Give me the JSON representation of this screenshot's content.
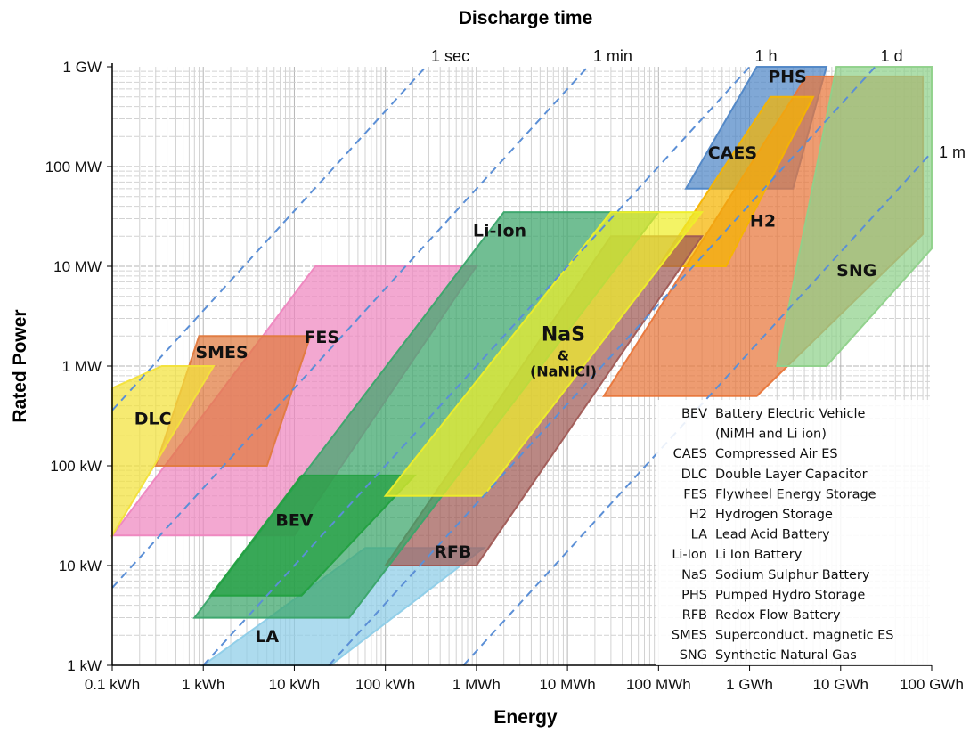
{
  "chart_data": {
    "type": "area",
    "xlabel": "Energy",
    "ylabel": "Rated Power",
    "top_label": "Discharge time",
    "x_scale": "log",
    "y_scale": "log",
    "x_unit": "kWh",
    "y_unit": "kW",
    "xlim": [
      0.1,
      100000000
    ],
    "ylim": [
      1,
      1000000
    ],
    "grid": true,
    "x_ticks": [
      {
        "value": 0.1,
        "label": "0.1 kWh"
      },
      {
        "value": 1,
        "label": "1 kWh"
      },
      {
        "value": 10,
        "label": "10 kWh"
      },
      {
        "value": 100,
        "label": "100 kWh"
      },
      {
        "value": 1000,
        "label": "1 MWh"
      },
      {
        "value": 10000,
        "label": "10 MWh"
      },
      {
        "value": 100000,
        "label": "100 MWh"
      },
      {
        "value": 1000000,
        "label": "1 GWh"
      },
      {
        "value": 10000000,
        "label": "10 GWh"
      },
      {
        "value": 100000000,
        "label": "100 GWh"
      }
    ],
    "y_ticks": [
      {
        "value": 1,
        "label": "1 kW"
      },
      {
        "value": 10,
        "label": "10 kW"
      },
      {
        "value": 100,
        "label": "100 kW"
      },
      {
        "value": 1000,
        "label": "1 MW"
      },
      {
        "value": 10000,
        "label": "10 MW"
      },
      {
        "value": 100000,
        "label": "100 MW"
      },
      {
        "value": 1000000,
        "label": "1 GW"
      }
    ],
    "discharge_lines": [
      {
        "label": "1 sec",
        "hours": 0.000278
      },
      {
        "label": "1 min",
        "hours": 0.0167
      },
      {
        "label": "1 h",
        "hours": 1
      },
      {
        "label": "1 d",
        "hours": 24
      },
      {
        "label": "1 m",
        "hours": 720
      }
    ],
    "series": [
      {
        "name": "LA",
        "color": "#8ecde8",
        "points": [
          [
            1,
            1
          ],
          [
            25,
            1
          ],
          [
            1200,
            15
          ],
          [
            60,
            15
          ]
        ],
        "label_at": [
          5,
          1.7
        ]
      },
      {
        "name": "PHS",
        "color": "#4f86c6",
        "points": [
          [
            1200000,
            1000000
          ],
          [
            7000000,
            1000000
          ],
          [
            3000000,
            60000
          ],
          [
            200000,
            60000
          ]
        ],
        "label_at": [
          2600000,
          700000
        ]
      },
      {
        "name": "H2",
        "color": "#e8763a",
        "points": [
          [
            4200000,
            800000
          ],
          [
            80000000,
            800000
          ],
          [
            80000000,
            21000
          ],
          [
            1200000,
            500
          ],
          [
            25000,
            500
          ]
        ],
        "label_at": [
          1400000,
          25000
        ]
      },
      {
        "name": "SNG",
        "color": "#8fd18a",
        "points": [
          [
            9000000,
            1000000
          ],
          [
            100000000,
            1000000
          ],
          [
            100000000,
            15000
          ],
          [
            7000000,
            1000
          ],
          [
            2000000,
            1000
          ]
        ],
        "label_at": [
          15000000,
          8000
        ]
      },
      {
        "name": "CAES",
        "color": "#f5b400",
        "points": [
          [
            100000,
            10000
          ],
          [
            550000,
            10000
          ],
          [
            5000000,
            500000
          ],
          [
            1700000,
            500000
          ]
        ],
        "label_at": [
          650000,
          120000
        ]
      },
      {
        "name": "FES",
        "color": "#ee86bf",
        "points": [
          [
            0.1,
            20
          ],
          [
            10,
            20
          ],
          [
            1000,
            10000
          ],
          [
            17,
            10000
          ]
        ],
        "label_at": [
          20,
          1700
        ]
      },
      {
        "name": "SMES",
        "color": "#e07a3f",
        "points": [
          [
            0.3,
            100
          ],
          [
            5,
            100
          ],
          [
            15,
            2000
          ],
          [
            0.9,
            2000
          ]
        ],
        "label_at": [
          1.6,
          1200
        ]
      },
      {
        "name": "DLC",
        "color": "#f3e23a",
        "points": [
          [
            0.1,
            20
          ],
          [
            0.1,
            600
          ],
          [
            0.35,
            1000
          ],
          [
            1.3,
            1000
          ],
          [
            0.1,
            20
          ]
        ],
        "label_at": [
          0.28,
          260
        ]
      },
      {
        "name": "RFB",
        "color": "#a05a55",
        "points": [
          [
            100,
            10
          ],
          [
            1000,
            10
          ],
          [
            300000,
            20000
          ],
          [
            30000,
            20000
          ]
        ],
        "label_at": [
          550,
          12
        ]
      },
      {
        "name": "Li-Ion",
        "color": "#3aa56a",
        "points": [
          [
            0.8,
            3
          ],
          [
            40,
            3
          ],
          [
            100000,
            35000
          ],
          [
            2000,
            35000
          ]
        ],
        "label_at": [
          1800,
          20000
        ]
      },
      {
        "name": "BEV",
        "color": "#22a040",
        "points": [
          [
            1.2,
            5
          ],
          [
            12,
            5
          ],
          [
            210,
            80
          ],
          [
            12,
            80
          ]
        ],
        "label_at": [
          10,
          25
        ]
      },
      {
        "name": "NaS",
        "color": "#eeee2a",
        "points": [
          [
            100,
            50
          ],
          [
            1200,
            50
          ],
          [
            300000,
            35000
          ],
          [
            30000,
            35000
          ]
        ],
        "label_at": [
          9000,
          1800
        ]
      }
    ],
    "overlay_text": [
      "&",
      "(NaNiCl)"
    ],
    "legend": [
      {
        "abbr": "BEV",
        "desc": "Battery  Electric Vehicle"
      },
      {
        "abbr": "",
        "desc": "(NiMH and Li ion)"
      },
      {
        "abbr": "CAES",
        "desc": "Compressed Air ES"
      },
      {
        "abbr": "DLC",
        "desc": "Double Layer Capacitor"
      },
      {
        "abbr": "FES",
        "desc": "Flywheel  Energy Storage"
      },
      {
        "abbr": "H2",
        "desc": "Hydrogen Storage"
      },
      {
        "abbr": "LA",
        "desc": "Lead Acid Battery"
      },
      {
        "abbr": "Li-Ion",
        "desc": "Li Ion Battery"
      },
      {
        "abbr": "NaS",
        "desc": "Sodium Sulphur Battery"
      },
      {
        "abbr": "PHS",
        "desc": "Pumped Hydro Storage"
      },
      {
        "abbr": "RFB",
        "desc": "Redox Flow  Battery"
      },
      {
        "abbr": "SMES",
        "desc": "Superconduct. magnetic ES"
      },
      {
        "abbr": "SNG",
        "desc": "Synthetic Natural Gas"
      }
    ]
  }
}
